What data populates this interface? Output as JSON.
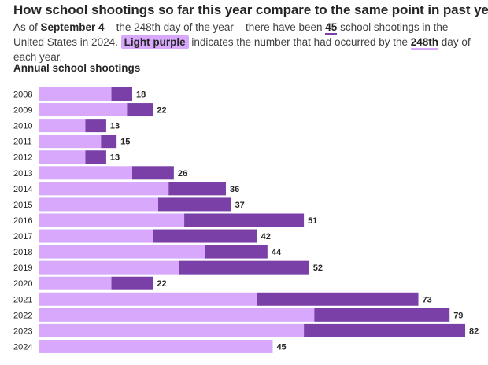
{
  "header": {
    "title": "How school shootings so far this year compare to the same point in past years",
    "sub_1": "As of ",
    "sub_date": "September 4",
    "sub_2": " – the 248th day of the year – there have been ",
    "sub_count": "45",
    "sub_3": " school shootings in the United States in 2024. ",
    "sub_highlight": "Light purple",
    "sub_4": " indicates the number that had occurred by the ",
    "sub_day": "248th",
    "sub_5": " day of each year."
  },
  "colors": {
    "light": "#d7a8fb",
    "dark": "#7b3fa8"
  },
  "chart_data": {
    "type": "bar",
    "orientation": "horizontal",
    "stacked": true,
    "title": "Annual school shootings",
    "categories": [
      "2008",
      "2009",
      "2010",
      "2011",
      "2012",
      "2013",
      "2014",
      "2015",
      "2016",
      "2017",
      "2018",
      "2019",
      "2020",
      "2021",
      "2022",
      "2023",
      "2024"
    ],
    "series": [
      {
        "values": [
          14,
          17,
          9,
          12,
          9,
          18,
          25,
          23,
          28,
          22,
          32,
          27,
          14,
          42,
          53,
          51,
          45
        ]
      },
      {
        "values": [
          4,
          5,
          4,
          3,
          4,
          8,
          11,
          14,
          23,
          20,
          12,
          25,
          8,
          31,
          26,
          31,
          0
        ]
      }
    ],
    "totals": [
      18,
      22,
      13,
      15,
      13,
      26,
      36,
      37,
      51,
      42,
      44,
      52,
      22,
      73,
      79,
      82,
      45
    ],
    "xlim": [
      0,
      82
    ],
    "grid": false,
    "legend": "none"
  }
}
